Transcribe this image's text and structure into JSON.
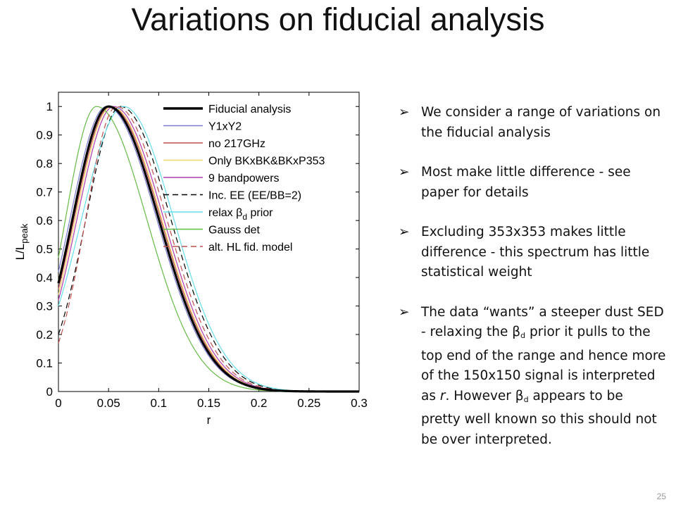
{
  "slide": {
    "title": "Variations on fiducial analysis",
    "page_number": "25"
  },
  "bullets": [
    {
      "text": "We consider a range of variations on the fiducial analysis"
    },
    {
      "text": "Most make little difference - see paper for details"
    },
    {
      "text": "Excluding 353x353 makes little difference - this spectrum has little statistical weight"
    },
    {
      "before": "The data “wants” a steeper dust SED - relaxing the ",
      "sym": "β",
      "sub": "d",
      "mid": " prior it pulls to the top end of the range and hence more of the 150x150 signal is interpreted as ",
      "r": "r",
      "mid2": ". However ",
      "sym2": "β",
      "sub2": "d",
      "after": " appears to be pretty well known so this should not be over interpreted."
    }
  ],
  "chart_data": {
    "type": "line",
    "xlabel": "r",
    "ylabel_main": "L/L",
    "ylabel_sub": "peak",
    "xlim": [
      0,
      0.3
    ],
    "ylim": [
      0,
      1.05
    ],
    "xticks": [
      "0",
      "0.05",
      "0.1",
      "0.15",
      "0.2",
      "0.25",
      "0.3"
    ],
    "yticks": [
      "0",
      "0.1",
      "0.2",
      "0.3",
      "0.4",
      "0.5",
      "0.6",
      "0.7",
      "0.8",
      "0.9",
      "1"
    ],
    "xtick_values": [
      0,
      0.05,
      0.1,
      0.15,
      0.2,
      0.25,
      0.3
    ],
    "ytick_values": [
      0,
      0.1,
      0.2,
      0.3,
      0.4,
      0.5,
      0.6,
      0.7,
      0.8,
      0.9,
      1
    ],
    "legend_position": "top-right",
    "series": [
      {
        "name": "Fiducial analysis",
        "color": "#000000",
        "width": 3.2,
        "dash": "",
        "peak": 0.05,
        "y0": 0.38
      },
      {
        "name": "Y1xY2",
        "color": "#7b7bd0",
        "width": 1.2,
        "dash": "",
        "peak": 0.048,
        "y0": 0.42
      },
      {
        "name": "no 217GHz",
        "color": "#c0504d",
        "width": 1.2,
        "dash": "",
        "peak": 0.052,
        "y0": 0.36
      },
      {
        "name": "Only BKxBK&BKxP353",
        "color": "#f5d76e",
        "width": 1.2,
        "dash": "",
        "peak": 0.053,
        "y0": 0.34
      },
      {
        "name": "9 bandpowers",
        "color": "#b03ab0",
        "width": 1.2,
        "dash": "",
        "peak": 0.055,
        "y0": 0.32
      },
      {
        "name": "Inc. EE (EE/BB=2)",
        "color": "#000000",
        "width": 1.2,
        "dash": "8,5",
        "peak": 0.062,
        "y0": 0.2
      },
      {
        "name_prefix": "relax ",
        "name_sym": "β",
        "name_sub": "d",
        "name_suffix": " prior",
        "color": "#66ddee",
        "width": 1.2,
        "dash": "",
        "peak": 0.065,
        "y0": 0.3
      },
      {
        "name": "Gauss det",
        "color": "#66bb44",
        "width": 1.2,
        "dash": "",
        "peak": 0.038,
        "y0": 0.47
      },
      {
        "name": "alt. HL fid. model",
        "color": "#c0504d",
        "width": 1.2,
        "dash": "8,5",
        "peak": 0.058,
        "y0": 0.17
      }
    ]
  }
}
